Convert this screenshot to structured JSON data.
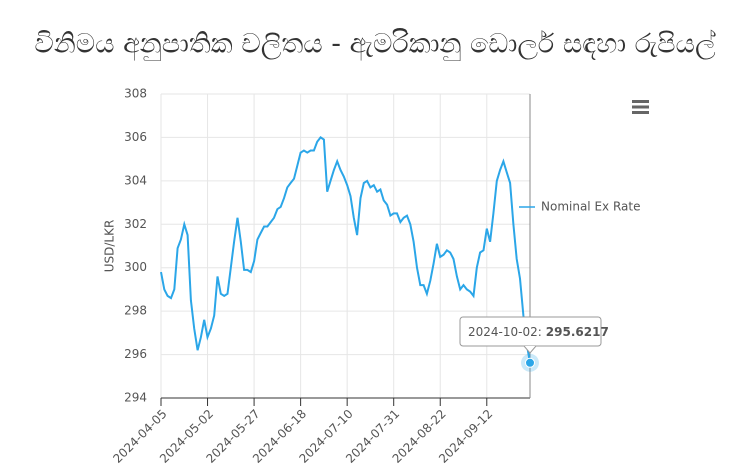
{
  "chart_data": {
    "type": "line",
    "title": "විනිමය අනුපාතික චලිතය - ඇමරිකානු ඩොලර් සඳහා රුපියල්",
    "y_label": "USD/LKR",
    "categories": [
      "2024-04-05",
      null,
      null,
      null,
      null,
      null,
      null,
      null,
      null,
      null,
      null,
      null,
      null,
      null,
      "2024-05-02",
      null,
      null,
      null,
      null,
      null,
      null,
      null,
      null,
      null,
      null,
      null,
      null,
      null,
      "2024-05-27",
      null,
      null,
      null,
      null,
      null,
      null,
      null,
      null,
      null,
      null,
      null,
      null,
      null,
      "2024-06-18",
      null,
      null,
      null,
      null,
      null,
      null,
      null,
      null,
      null,
      null,
      null,
      null,
      null,
      "2024-07-10",
      null,
      null,
      null,
      null,
      null,
      null,
      null,
      null,
      null,
      null,
      null,
      null,
      null,
      "2024-07-31",
      null,
      null,
      null,
      null,
      null,
      null,
      null,
      null,
      null,
      null,
      null,
      null,
      null,
      "2024-08-22",
      null,
      null,
      null,
      null,
      null,
      null,
      null,
      null,
      null,
      null,
      null,
      null,
      null,
      "2024-09-12",
      null,
      null,
      null,
      null,
      null,
      null,
      null,
      null,
      null,
      null,
      null,
      null,
      null
    ],
    "series": [
      {
        "name": "Nominal Ex Rate",
        "color": "#2ba6e8",
        "values": [
          299.8,
          299.0,
          298.7,
          298.6,
          299.0,
          300.9,
          301.3,
          302.0,
          301.5,
          298.5,
          297.2,
          296.2,
          296.8,
          297.6,
          296.8,
          297.2,
          297.8,
          299.6,
          298.8,
          298.7,
          298.8,
          300.0,
          301.2,
          302.3,
          301.2,
          299.9,
          299.9,
          299.8,
          300.3,
          301.3,
          301.6,
          301.9,
          301.9,
          302.1,
          302.3,
          302.7,
          302.8,
          303.2,
          303.7,
          303.9,
          304.1,
          304.7,
          305.3,
          305.4,
          305.3,
          305.4,
          305.4,
          305.8,
          306.0,
          305.9,
          303.5,
          304.0,
          304.5,
          304.9,
          304.5,
          304.2,
          303.8,
          303.3,
          302.3,
          301.5,
          303.2,
          303.9,
          304.0,
          303.7,
          303.8,
          303.5,
          303.6,
          303.1,
          302.9,
          302.4,
          302.5,
          302.5,
          302.1,
          302.3,
          302.4,
          302.0,
          301.2,
          300.0,
          299.2,
          299.2,
          298.8,
          299.4,
          300.2,
          301.1,
          300.5,
          300.6,
          300.8,
          300.7,
          300.4,
          299.6,
          299.0,
          299.2,
          299.0,
          298.9,
          298.7,
          300.0,
          300.7,
          300.8,
          301.8,
          301.2,
          302.5,
          304.0,
          304.5,
          304.9,
          304.4,
          303.9,
          302.0,
          300.4,
          299.5,
          297.8,
          296.5,
          295.6217
        ]
      }
    ],
    "ylim": [
      294,
      308
    ],
    "yticks": [
      294,
      296,
      298,
      300,
      302,
      304,
      306,
      308
    ],
    "grid": true,
    "legend": "right",
    "tooltip": {
      "label": "2024-10-02:",
      "value": 295.6217,
      "index": 111
    }
  }
}
